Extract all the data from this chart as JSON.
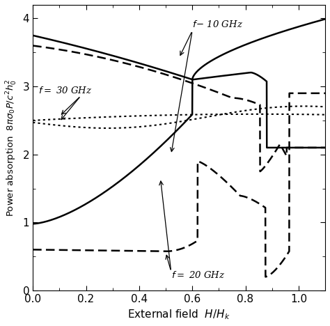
{
  "title": "",
  "xlabel": "External field  $H / H_k$",
  "ylabel": "Power absorption  $8\\pi\\sigma_0 P/c^2h_0^2$",
  "xlim": [
    0.0,
    1.1
  ],
  "ylim": [
    0.0,
    4.2
  ],
  "xticks": [
    0.0,
    0.2,
    0.4,
    0.6,
    0.8,
    1.0
  ],
  "yticks": [
    0,
    1,
    2,
    3,
    4
  ],
  "bg_color": "#ffffff"
}
